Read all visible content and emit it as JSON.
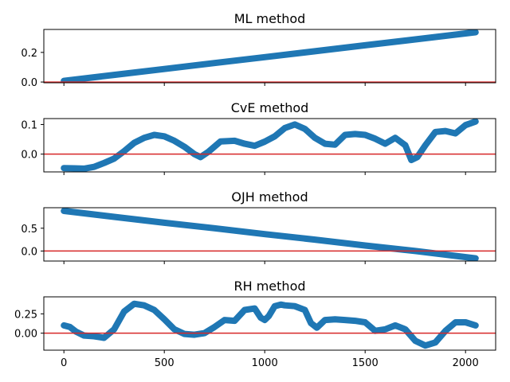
{
  "chart_data": [
    {
      "type": "line",
      "title": "ML method",
      "xlabel": "",
      "ylabel": "",
      "xlim": [
        -100,
        2150
      ],
      "ylim": [
        -0.005,
        0.355
      ],
      "yticks": [
        0.0,
        0.2
      ],
      "ytick_labels": [
        "0.0",
        "0.2"
      ],
      "series": [
        {
          "x": [
            0,
            250,
            500,
            750,
            1000,
            1250,
            1500,
            1750,
            2050
          ],
          "values": [
            0.008,
            0.048,
            0.088,
            0.128,
            0.168,
            0.208,
            0.248,
            0.288,
            0.336
          ]
        }
      ],
      "hline": 0.0
    },
    {
      "type": "line",
      "title": "CvE method",
      "xlabel": "",
      "ylabel": "",
      "xlim": [
        -100,
        2150
      ],
      "ylim": [
        -0.06,
        0.12
      ],
      "yticks": [
        0.0,
        0.1
      ],
      "ytick_labels": [
        "0.0",
        "0.1"
      ],
      "series": [
        {
          "x": [
            0,
            50,
            100,
            150,
            200,
            250,
            300,
            350,
            400,
            450,
            500,
            550,
            600,
            650,
            680,
            720,
            780,
            850,
            900,
            950,
            1000,
            1050,
            1100,
            1150,
            1200,
            1250,
            1300,
            1350,
            1400,
            1450,
            1500,
            1550,
            1600,
            1650,
            1700,
            1730,
            1760,
            1800,
            1850,
            1900,
            1950,
            2000,
            2050
          ],
          "values": [
            -0.047,
            -0.048,
            -0.049,
            -0.043,
            -0.03,
            -0.015,
            0.01,
            0.038,
            0.055,
            0.065,
            0.06,
            0.045,
            0.025,
            0.0,
            -0.01,
            0.008,
            0.043,
            0.045,
            0.035,
            0.028,
            0.042,
            0.06,
            0.088,
            0.1,
            0.085,
            0.055,
            0.035,
            0.032,
            0.065,
            0.068,
            0.065,
            0.052,
            0.035,
            0.055,
            0.03,
            -0.02,
            -0.01,
            0.03,
            0.075,
            0.078,
            0.07,
            0.098,
            0.11
          ]
        }
      ],
      "hline": 0.0
    },
    {
      "type": "line",
      "title": "OJH method",
      "xlabel": "",
      "ylabel": "",
      "xlim": [
        -100,
        2150
      ],
      "ylim": [
        -0.22,
        0.95
      ],
      "yticks": [
        0.0,
        0.5
      ],
      "ytick_labels": [
        "0.0",
        "0.5"
      ],
      "series": [
        {
          "x": [
            0,
            250,
            500,
            750,
            1000,
            1250,
            1500,
            1750,
            2050
          ],
          "values": [
            0.88,
            0.75,
            0.62,
            0.5,
            0.37,
            0.25,
            0.12,
            0.0,
            -0.16
          ]
        }
      ],
      "hline": 0.0
    },
    {
      "type": "line",
      "title": "RH method",
      "xlabel": "",
      "ylabel": "",
      "xlim": [
        -100,
        2150
      ],
      "ylim": [
        -0.22,
        0.47
      ],
      "yticks": [
        0.0,
        0.25
      ],
      "ytick_labels": [
        "0.00",
        "0.25"
      ],
      "xticks": [
        0,
        500,
        1000,
        1500,
        2000
      ],
      "xtick_labels": [
        "0",
        "500",
        "1000",
        "1500",
        "2000"
      ],
      "series": [
        {
          "x": [
            0,
            30,
            60,
            100,
            150,
            200,
            250,
            300,
            350,
            400,
            450,
            500,
            550,
            600,
            650,
            700,
            750,
            800,
            850,
            900,
            950,
            980,
            1000,
            1020,
            1050,
            1080,
            1100,
            1150,
            1200,
            1230,
            1260,
            1300,
            1350,
            1400,
            1450,
            1500,
            1550,
            1600,
            1650,
            1700,
            1750,
            1800,
            1850,
            1900,
            1950,
            2000,
            2050
          ],
          "values": [
            0.1,
            0.08,
            0.02,
            -0.03,
            -0.04,
            -0.06,
            0.05,
            0.28,
            0.38,
            0.36,
            0.3,
            0.18,
            0.05,
            -0.01,
            -0.02,
            0.0,
            0.08,
            0.17,
            0.16,
            0.3,
            0.32,
            0.2,
            0.17,
            0.22,
            0.35,
            0.37,
            0.36,
            0.35,
            0.3,
            0.13,
            0.07,
            0.17,
            0.18,
            0.17,
            0.16,
            0.14,
            0.03,
            0.05,
            0.1,
            0.05,
            -0.1,
            -0.16,
            -0.12,
            0.03,
            0.14,
            0.14,
            0.1
          ]
        }
      ],
      "hline": 0.0
    }
  ],
  "colors": {
    "series": "#1f77b4",
    "hline": "#d62728",
    "axes": "#000000"
  }
}
